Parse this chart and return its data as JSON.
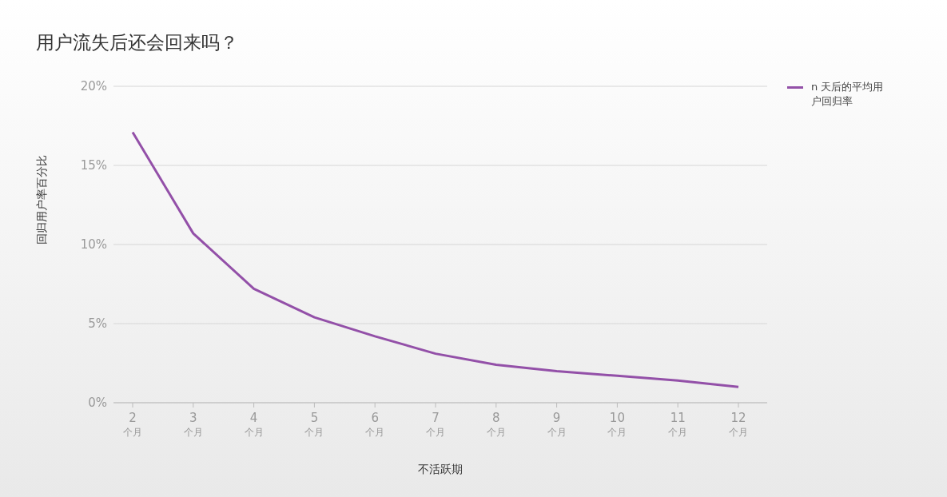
{
  "chart_data": {
    "type": "line",
    "title": "用户流失后还会回来吗？",
    "xlabel": "不活跃期",
    "ylabel": "回归用户率百分比",
    "categories": [
      "2\n个月",
      "3\n个月",
      "4\n个月",
      "5\n个月",
      "6\n个月",
      "7\n个月",
      "8\n个月",
      "9\n个月",
      "10\n个月",
      "11\n个月",
      "12\n个月"
    ],
    "series": [
      {
        "name": "n 天后的平均用户回归率",
        "color": "#9350a8",
        "values": [
          17.1,
          10.7,
          7.2,
          5.4,
          4.2,
          3.1,
          2.4,
          2.0,
          1.7,
          1.4,
          1.0
        ]
      }
    ],
    "ylim": [
      0,
      20
    ],
    "yticks": [
      {
        "value": 0,
        "label": "0%"
      },
      {
        "value": 5,
        "label": "5%"
      },
      {
        "value": 10,
        "label": "10%"
      },
      {
        "value": 15,
        "label": "15%"
      },
      {
        "value": 20,
        "label": "20%"
      }
    ],
    "grid": "y",
    "legend": "top right",
    "marker": "none",
    "line_style": "solid"
  }
}
